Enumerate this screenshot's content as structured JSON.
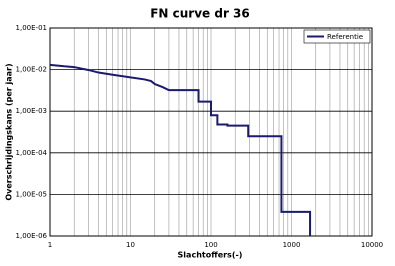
{
  "chart_data": {
    "type": "line",
    "title": "FN curve dr 36",
    "x_label": "Slachtoffers(-)",
    "y_label": "Overschrijdingskans (per jaar)",
    "log_x": true,
    "log_y": true,
    "grid": true,
    "legend": "top-right",
    "xlim": [
      1,
      10000
    ],
    "ylim": [
      1e-06,
      0.1
    ],
    "xticks": [
      1,
      10,
      100,
      1000,
      10000
    ],
    "xminorticks": [
      2,
      3,
      4,
      5,
      6,
      7,
      8,
      9,
      20,
      30,
      40,
      50,
      60,
      70,
      80,
      90,
      200,
      300,
      400,
      500,
      600,
      700,
      800,
      900,
      2000,
      3000,
      4000,
      5000,
      6000,
      7000,
      8000,
      9000
    ],
    "yticks": [
      {
        "value": 1e-06,
        "label": "1,00E-06"
      },
      {
        "value": 1e-05,
        "label": "1,00E-05"
      },
      {
        "value": 0.0001,
        "label": "1,00E-04"
      },
      {
        "value": 0.001,
        "label": "1,00E-03"
      },
      {
        "value": 0.01,
        "label": "1,00E-02"
      },
      {
        "value": 0.1,
        "label": "1,00E-01"
      }
    ],
    "series": [
      {
        "name": "Referentie",
        "color": "#1a1a6e",
        "x": [
          1,
          1.5,
          2,
          2.5,
          3,
          4,
          6,
          10,
          15,
          18,
          20,
          25,
          30,
          70,
          70,
          100,
          100,
          120,
          120,
          160,
          160,
          290,
          290,
          750,
          750,
          1700,
          1700
        ],
        "values": [
          0.013,
          0.012,
          0.0115,
          0.0105,
          0.0098,
          0.0085,
          0.0075,
          0.0065,
          0.0058,
          0.0053,
          0.0045,
          0.0038,
          0.0032,
          0.0032,
          0.0017,
          0.0017,
          0.0008,
          0.0008,
          0.00048,
          0.00048,
          0.00045,
          0.00045,
          0.00025,
          0.00025,
          3.8e-06,
          3.8e-06,
          1e-06
        ]
      }
    ]
  }
}
